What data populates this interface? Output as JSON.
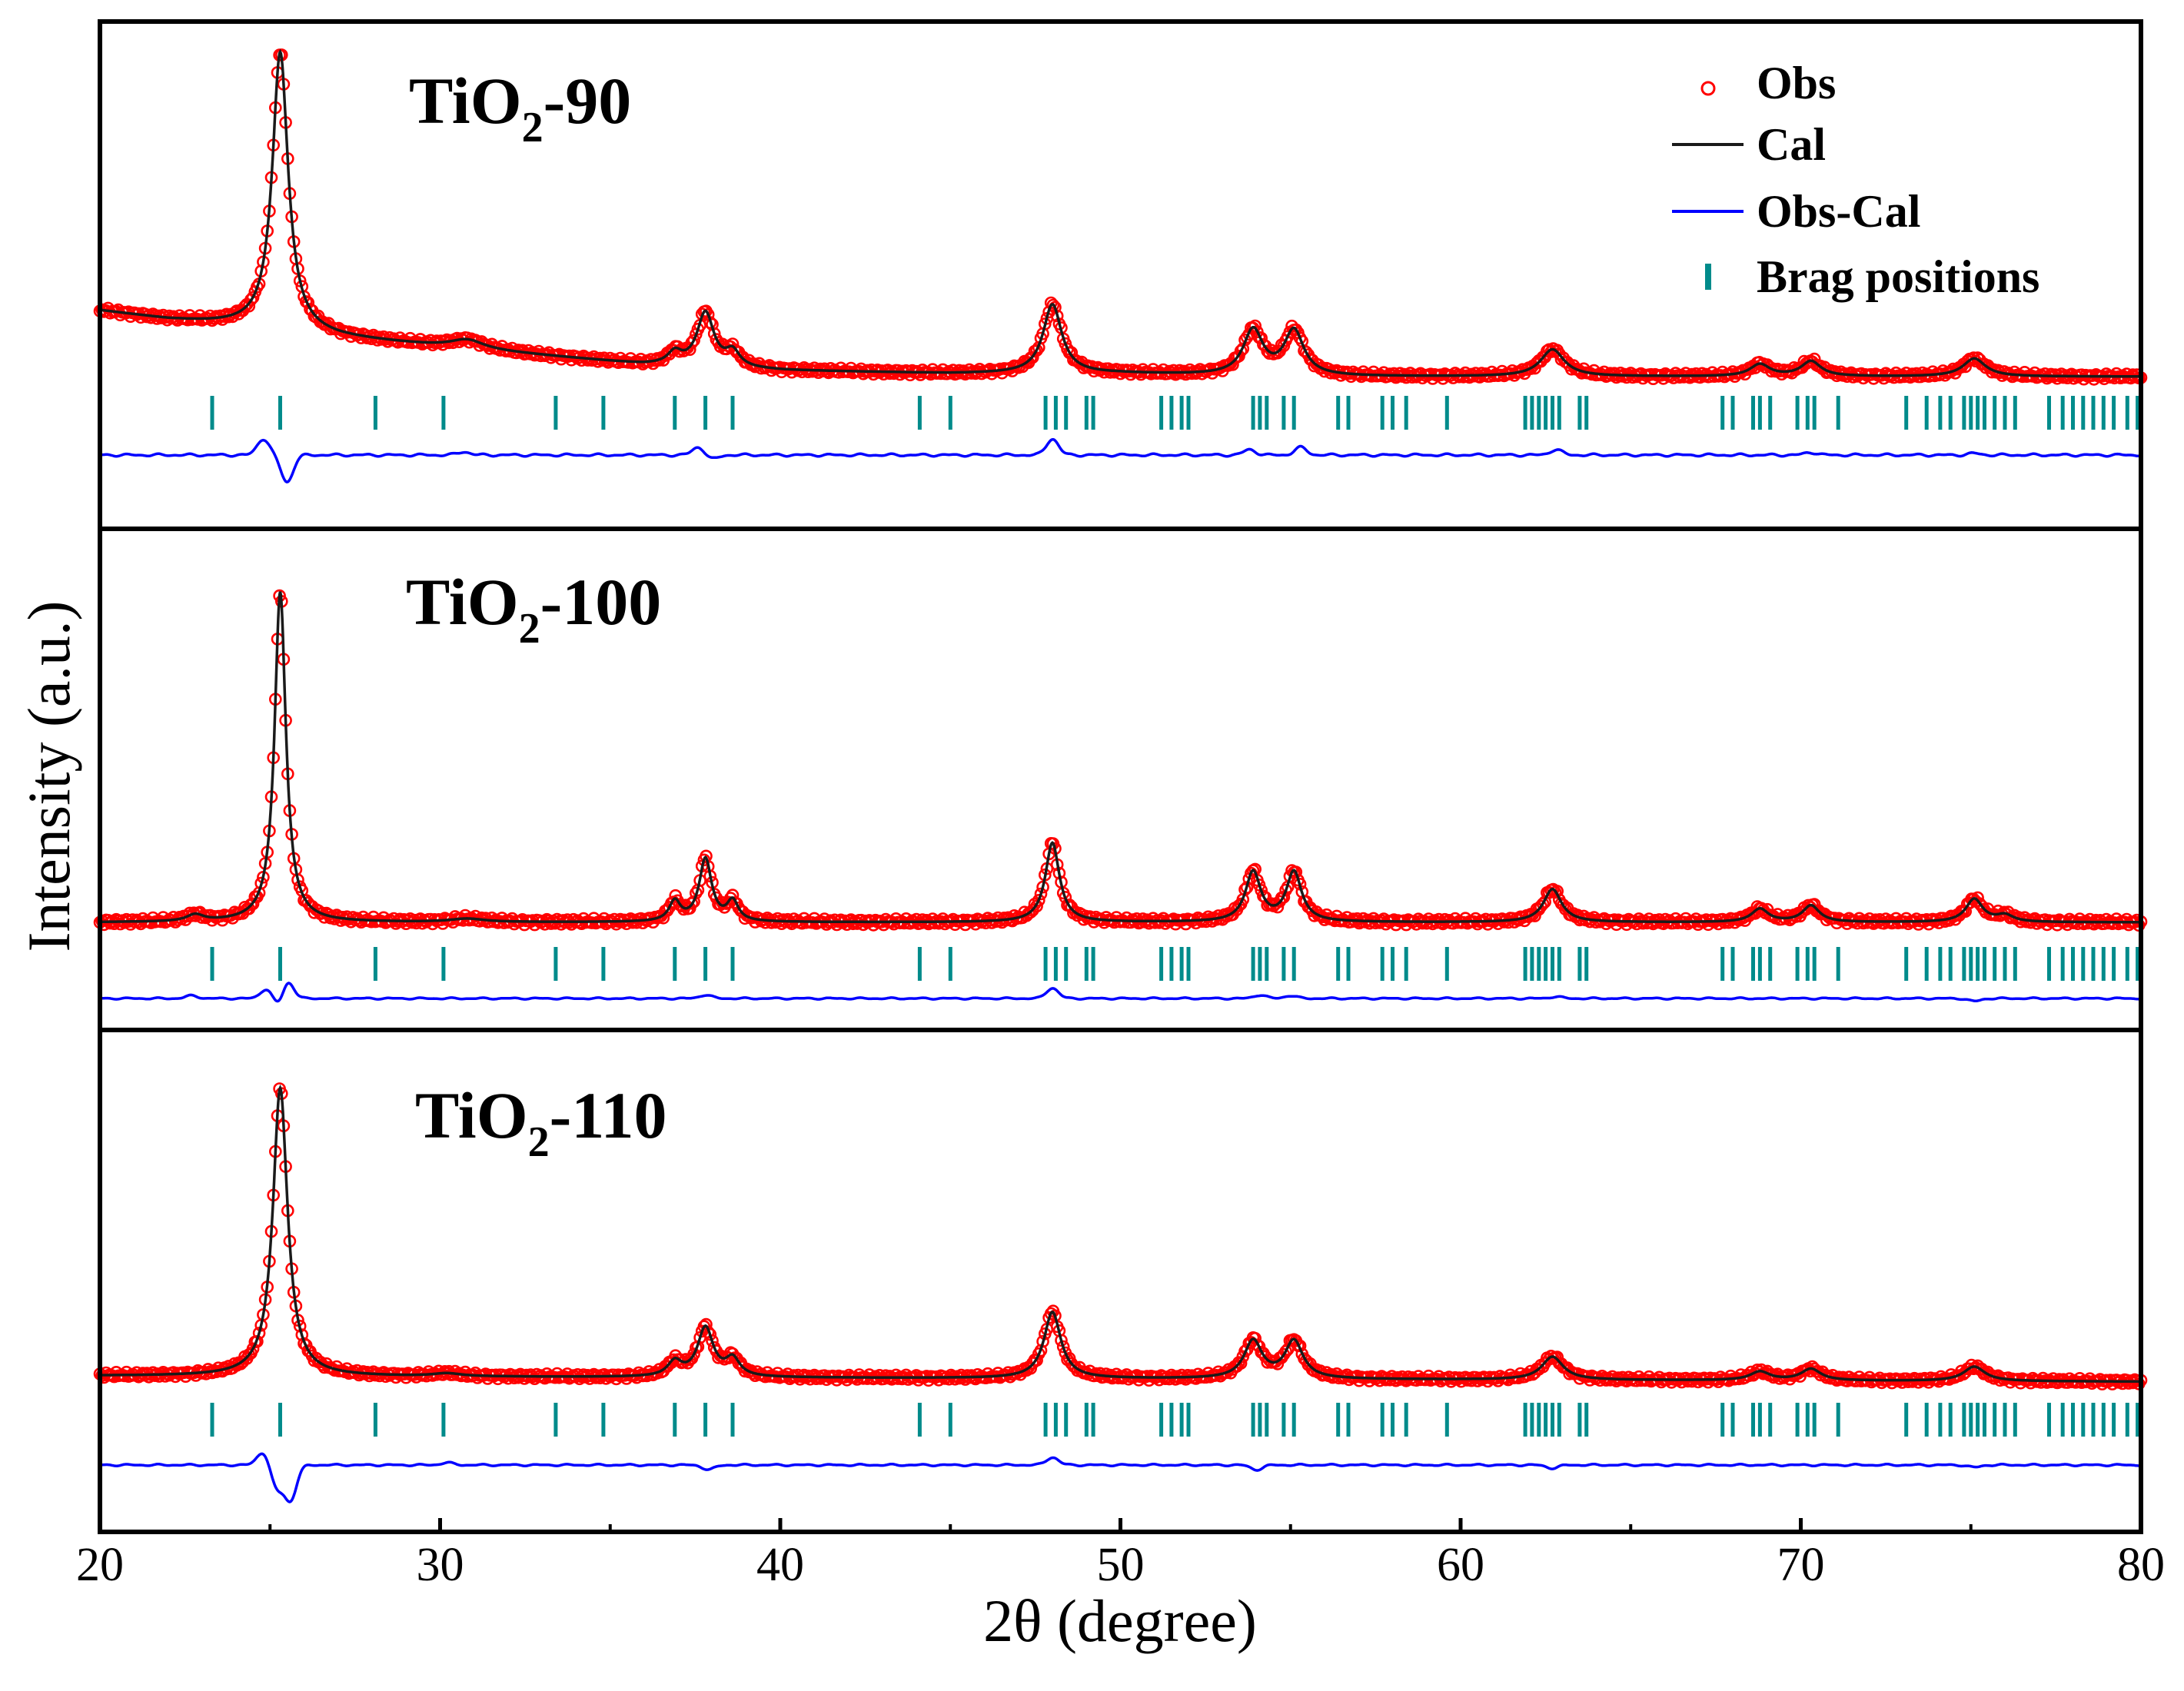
{
  "chart_data": {
    "type": "line",
    "xlabel": "2θ (degree)",
    "ylabel": "Intensity (a.u.)",
    "xlim": [
      20,
      80
    ],
    "xticks": [
      "20",
      "30",
      "40",
      "50",
      "60",
      "70",
      "80"
    ],
    "legend": {
      "placement": "top-right of top panel",
      "entries": [
        {
          "label": "Obs",
          "color": "#ff0000",
          "marker": "open-circle"
        },
        {
          "label": "Cal",
          "color": "#000000",
          "marker": "line"
        },
        {
          "label": "Obs-Cal",
          "color": "#0000ff",
          "marker": "line"
        },
        {
          "label": "Brag positions",
          "color": "#008b8b",
          "marker": "vertical-tick"
        }
      ]
    },
    "bragg_positions": [
      23.3,
      25.3,
      28.1,
      30.1,
      33.4,
      34.8,
      36.9,
      37.8,
      38.6,
      44.1,
      45.0,
      47.8,
      48.1,
      48.4,
      49.0,
      49.2,
      51.2,
      51.5,
      51.8,
      52.0,
      53.9,
      54.1,
      54.3,
      54.8,
      55.1,
      56.4,
      56.7,
      57.7,
      58.0,
      58.4,
      59.6,
      61.9,
      62.1,
      62.3,
      62.5,
      62.7,
      62.9,
      63.5,
      63.7,
      67.7,
      68.0,
      68.6,
      68.8,
      69.1,
      69.9,
      70.2,
      70.4,
      71.1,
      73.1,
      73.7,
      74.1,
      74.4,
      74.8,
      75.0,
      75.2,
      75.4,
      75.7,
      76.0,
      76.3,
      77.3,
      77.7,
      78.0,
      78.3,
      78.6,
      78.9,
      79.2,
      79.6,
      79.9
    ],
    "panels": [
      {
        "name": "TiO2-90",
        "label_main": "TiO",
        "label_sub": "2",
        "label_tail": "-90",
        "baseline": {
          "points": [
            [
              20,
              0.22
            ],
            [
              22,
              0.19
            ],
            [
              24,
              0.17
            ],
            [
              27,
              0.13
            ],
            [
              30,
              0.1
            ],
            [
              33,
              0.07
            ],
            [
              36,
              0.04
            ],
            [
              40,
              0.02
            ],
            [
              45,
              0.01
            ],
            [
              50,
              0.01
            ],
            [
              55,
              0.0
            ],
            [
              60,
              0.0
            ],
            [
              70,
              0.0
            ],
            [
              80,
              0.0
            ]
          ]
        },
        "peaks": [
          {
            "pos": 25.3,
            "height": 0.93,
            "width": 0.28
          },
          {
            "pos": 30.8,
            "height": 0.03,
            "width": 0.6
          },
          {
            "pos": 36.9,
            "height": 0.04,
            "width": 0.25
          },
          {
            "pos": 37.8,
            "height": 0.18,
            "width": 0.3
          },
          {
            "pos": 38.6,
            "height": 0.05,
            "width": 0.25
          },
          {
            "pos": 48.0,
            "height": 0.23,
            "width": 0.33
          },
          {
            "pos": 53.9,
            "height": 0.15,
            "width": 0.35
          },
          {
            "pos": 55.1,
            "height": 0.15,
            "width": 0.35
          },
          {
            "pos": 62.7,
            "height": 0.09,
            "width": 0.42
          },
          {
            "pos": 68.8,
            "height": 0.04,
            "width": 0.35
          },
          {
            "pos": 70.3,
            "height": 0.05,
            "width": 0.35
          },
          {
            "pos": 75.1,
            "height": 0.06,
            "width": 0.4
          }
        ],
        "difference": [
          {
            "pos": 24.8,
            "height": 0.3
          },
          {
            "pos": 25.5,
            "height": -0.5
          },
          {
            "pos": 30.7,
            "height": 0.06
          },
          {
            "pos": 37.6,
            "height": 0.15
          },
          {
            "pos": 38.0,
            "height": -0.08
          },
          {
            "pos": 48.0,
            "height": 0.3
          },
          {
            "pos": 53.8,
            "height": 0.1
          },
          {
            "pos": 55.3,
            "height": 0.14
          },
          {
            "pos": 62.8,
            "height": 0.1
          },
          {
            "pos": 70.3,
            "height": 0.05
          },
          {
            "pos": 75.1,
            "height": 0.03
          }
        ]
      },
      {
        "name": "TiO2-100",
        "label_main": "TiO",
        "label_sub": "2",
        "label_tail": "-100",
        "baseline": {
          "points": [
            [
              20,
              0.0
            ],
            [
              80,
              0.0
            ]
          ]
        },
        "peaks": [
          {
            "pos": 22.8,
            "height": 0.02,
            "width": 0.3
          },
          {
            "pos": 25.3,
            "height": 1.0,
            "width": 0.2
          },
          {
            "pos": 30.8,
            "height": 0.01,
            "width": 0.6
          },
          {
            "pos": 36.9,
            "height": 0.06,
            "width": 0.2
          },
          {
            "pos": 37.8,
            "height": 0.19,
            "width": 0.22
          },
          {
            "pos": 38.6,
            "height": 0.06,
            "width": 0.2
          },
          {
            "pos": 48.0,
            "height": 0.24,
            "width": 0.25
          },
          {
            "pos": 53.9,
            "height": 0.15,
            "width": 0.27
          },
          {
            "pos": 55.1,
            "height": 0.15,
            "width": 0.27
          },
          {
            "pos": 62.7,
            "height": 0.1,
            "width": 0.32
          },
          {
            "pos": 68.8,
            "height": 0.04,
            "width": 0.3
          },
          {
            "pos": 70.3,
            "height": 0.05,
            "width": 0.3
          },
          {
            "pos": 75.1,
            "height": 0.07,
            "width": 0.3
          },
          {
            "pos": 76.0,
            "height": 0.02,
            "width": 0.3
          }
        ],
        "difference": [
          {
            "pos": 22.7,
            "height": 0.08
          },
          {
            "pos": 24.9,
            "height": 0.28
          },
          {
            "pos": 25.3,
            "height": -0.35
          },
          {
            "pos": 25.5,
            "height": 0.6
          },
          {
            "pos": 37.8,
            "height": 0.1
          },
          {
            "pos": 48.0,
            "height": 0.3
          },
          {
            "pos": 54.1,
            "height": 0.1
          },
          {
            "pos": 55.0,
            "height": 0.08
          },
          {
            "pos": 62.8,
            "height": 0.05
          },
          {
            "pos": 75.1,
            "height": -0.08
          }
        ]
      },
      {
        "name": "TiO2-110",
        "label_main": "TiO",
        "label_sub": "2",
        "label_tail": "-110",
        "baseline": {
          "points": [
            [
              20,
              0.0
            ],
            [
              80,
              -0.02
            ]
          ]
        },
        "peaks": [
          {
            "pos": 25.3,
            "height": 1.0,
            "width": 0.26
          },
          {
            "pos": 30.2,
            "height": 0.01,
            "width": 0.5
          },
          {
            "pos": 36.9,
            "height": 0.05,
            "width": 0.25
          },
          {
            "pos": 37.8,
            "height": 0.17,
            "width": 0.28
          },
          {
            "pos": 38.6,
            "height": 0.06,
            "width": 0.25
          },
          {
            "pos": 48.0,
            "height": 0.23,
            "width": 0.3
          },
          {
            "pos": 53.9,
            "height": 0.13,
            "width": 0.32
          },
          {
            "pos": 55.1,
            "height": 0.13,
            "width": 0.32
          },
          {
            "pos": 62.7,
            "height": 0.08,
            "width": 0.38
          },
          {
            "pos": 68.8,
            "height": 0.03,
            "width": 0.35
          },
          {
            "pos": 70.3,
            "height": 0.04,
            "width": 0.35
          },
          {
            "pos": 75.1,
            "height": 0.05,
            "width": 0.38
          }
        ],
        "difference": [
          {
            "pos": 24.8,
            "height": 0.35
          },
          {
            "pos": 25.2,
            "height": -0.6
          },
          {
            "pos": 25.6,
            "height": -0.9
          },
          {
            "pos": 30.2,
            "height": 0.06
          },
          {
            "pos": 37.9,
            "height": -0.12
          },
          {
            "pos": 48.0,
            "height": 0.2
          },
          {
            "pos": 54.0,
            "height": -0.12
          },
          {
            "pos": 62.7,
            "height": -0.08
          },
          {
            "pos": 75.1,
            "height": -0.06
          }
        ]
      }
    ]
  },
  "colors": {
    "obs": "#ff0000",
    "cal": "#1a1a1a",
    "diff": "#0000ff",
    "bragg": "#008b8b",
    "axis": "#000000"
  }
}
